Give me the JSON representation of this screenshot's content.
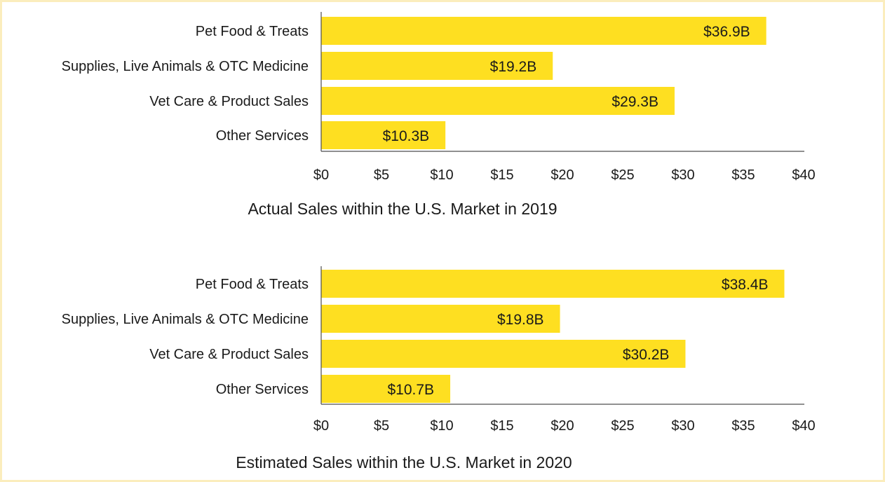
{
  "colors": {
    "bar": "#fedf21",
    "frame": "#fbedbd",
    "text": "#1a1a1a",
    "axis": "#4d4d4d"
  },
  "chart_data": [
    {
      "type": "bar",
      "orientation": "horizontal",
      "title": "Actual Sales within the U.S. Market in 2019",
      "categories": [
        "Pet Food & Treats",
        "Supplies, Live Animals & OTC Medicine",
        "Vet Care & Product Sales",
        "Other Services"
      ],
      "values": [
        36.9,
        19.2,
        29.3,
        10.3
      ],
      "data_labels": [
        "$36.9B",
        "$19.2B",
        "$29.3B",
        "$10.3B"
      ],
      "xlim": [
        0,
        40
      ],
      "xticks": [
        0,
        5,
        10,
        15,
        20,
        25,
        30,
        35,
        40
      ],
      "xtick_labels": [
        "$0",
        "$5",
        "$10",
        "$15",
        "$20",
        "$25",
        "$30",
        "$35",
        "$40"
      ],
      "grid": false,
      "legend": "none"
    },
    {
      "type": "bar",
      "orientation": "horizontal",
      "title": "Estimated Sales within the U.S. Market in 2020",
      "categories": [
        "Pet Food & Treats",
        "Supplies, Live Animals & OTC Medicine",
        "Vet Care & Product Sales",
        "Other Services"
      ],
      "values": [
        38.4,
        19.8,
        30.2,
        10.7
      ],
      "data_labels": [
        "$38.4B",
        "$19.8B",
        "$30.2B",
        "$10.7B"
      ],
      "xlim": [
        0,
        40
      ],
      "xticks": [
        0,
        5,
        10,
        15,
        20,
        25,
        30,
        35,
        40
      ],
      "xtick_labels": [
        "$0",
        "$5",
        "$10",
        "$15",
        "$20",
        "$25",
        "$30",
        "$35",
        "$40"
      ],
      "grid": false,
      "legend": "none"
    }
  ]
}
